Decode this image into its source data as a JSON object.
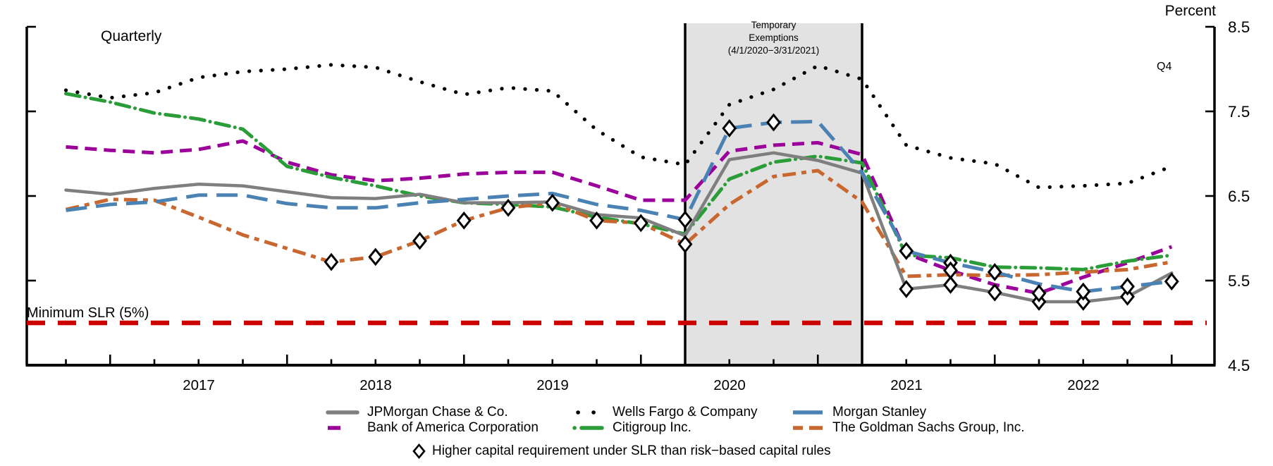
{
  "chart_data": {
    "type": "line",
    "title": "Quarterly",
    "unit_label": "Percent",
    "latest_label": "Q4",
    "ylim": [
      4.5,
      8.5
    ],
    "yticks": [
      8.5,
      7.5,
      6.5,
      5.5,
      4.5
    ],
    "ytick_labels": [
      "8.5",
      "7.5",
      "6.5",
      "5.5",
      "4.5"
    ],
    "year_labels": [
      "2017",
      "2018",
      "2019",
      "2020",
      "2021",
      "2022"
    ],
    "x_quarters": [
      "2016 Q3",
      "2016 Q4",
      "2017 Q1",
      "2017 Q2",
      "2017 Q3",
      "2017 Q4",
      "2018 Q1",
      "2018 Q2",
      "2018 Q3",
      "2018 Q4",
      "2019 Q1",
      "2019 Q2",
      "2019 Q3",
      "2019 Q4",
      "2020 Q1",
      "2020 Q2",
      "2020 Q3",
      "2020 Q4",
      "2021 Q1",
      "2021 Q2",
      "2021 Q3",
      "2021 Q4",
      "2022 Q1",
      "2022 Q2",
      "2022 Q3",
      "2022 Q4"
    ],
    "reference_line": {
      "label": "Minimum SLR (5%)",
      "value": 5.0,
      "color": "#cc0000"
    },
    "shaded_region": {
      "label_line1": "Temporary",
      "label_line2": "Exemptions",
      "label_line3": "(4/1/2020−3/31/2021)",
      "start_quarter": "2020 Q1",
      "end_quarter": "2021 Q1",
      "start_index": 14,
      "end_index": 18,
      "fill": "#e2e2e2"
    },
    "marker_note": "Higher capital requirement under SLR than risk−based capital rules",
    "series": [
      {
        "name": "JPMorgan Chase & Co.",
        "color": "#7f7f7f",
        "style": "solid",
        "values": [
          6.57,
          6.52,
          6.59,
          6.64,
          6.62,
          6.55,
          6.48,
          6.47,
          6.52,
          6.42,
          6.42,
          6.43,
          6.28,
          6.24,
          6.03,
          6.93,
          7.01,
          6.92,
          6.77,
          5.4,
          5.45,
          5.36,
          5.25,
          5.25,
          5.31,
          5.59
        ],
        "diamonds": [
          19,
          20,
          21,
          22,
          23,
          24
        ]
      },
      {
        "name": "Wells Fargo & Company",
        "color": "#000000",
        "style": "dotted",
        "values": [
          7.75,
          7.66,
          7.72,
          7.9,
          7.97,
          8.0,
          8.05,
          8.02,
          7.85,
          7.7,
          7.78,
          7.74,
          7.28,
          6.96,
          6.87,
          7.58,
          7.76,
          8.04,
          7.88,
          7.1,
          6.95,
          6.88,
          6.6,
          6.62,
          6.65,
          6.85
        ],
        "diamonds": []
      },
      {
        "name": "Morgan Stanley",
        "color": "#4b82b4",
        "style": "long-dash",
        "values": [
          6.33,
          6.4,
          6.43,
          6.51,
          6.51,
          6.41,
          6.36,
          6.36,
          6.42,
          6.46,
          6.5,
          6.53,
          6.4,
          6.33,
          6.22,
          7.3,
          7.37,
          7.38,
          6.78,
          5.85,
          5.71,
          5.6,
          5.46,
          5.37,
          5.43,
          5.49
        ],
        "diamonds": [
          14,
          15,
          16,
          19,
          20,
          21,
          23,
          24,
          25
        ]
      },
      {
        "name": "Bank of America Corporation",
        "color": "#9b009b",
        "style": "dash",
        "values": [
          7.08,
          7.04,
          7.01,
          7.05,
          7.15,
          6.9,
          6.75,
          6.68,
          6.71,
          6.76,
          6.78,
          6.78,
          6.62,
          6.45,
          6.45,
          7.03,
          7.1,
          7.13,
          6.99,
          5.82,
          5.62,
          5.45,
          5.35,
          5.54,
          5.71,
          5.9
        ],
        "diamonds": [
          20,
          22
        ]
      },
      {
        "name": "Citigroup Inc.",
        "color": "#2a9d38",
        "style": "dash-dot",
        "values": [
          7.71,
          7.61,
          7.48,
          7.41,
          7.29,
          6.85,
          6.72,
          6.62,
          6.5,
          6.42,
          6.4,
          6.37,
          6.25,
          6.17,
          6.05,
          6.7,
          6.9,
          6.97,
          6.89,
          5.8,
          5.77,
          5.66,
          5.65,
          5.63,
          5.73,
          5.8
        ],
        "diamonds": []
      },
      {
        "name": "The Goldman Sachs Group, Inc.",
        "color": "#c8672f",
        "style": "dash-dash-dot",
        "values": [
          6.34,
          6.46,
          6.45,
          6.25,
          6.04,
          5.88,
          5.72,
          5.78,
          5.97,
          6.21,
          6.36,
          6.42,
          6.21,
          6.18,
          5.93,
          6.4,
          6.73,
          6.8,
          6.43,
          5.55,
          5.57,
          5.56,
          5.57,
          5.6,
          5.63,
          5.72
        ],
        "diamonds": [
          6,
          7,
          8,
          9,
          10,
          11,
          12,
          13,
          14
        ]
      }
    ],
    "legend_rows": [
      [
        0,
        1,
        2
      ],
      [
        3,
        4,
        5
      ]
    ],
    "legend_positions": [
      [
        462,
        575
      ],
      [
        810,
        575
      ],
      [
        1122,
        575
      ],
      [
        462,
        597
      ],
      [
        810,
        597
      ],
      [
        1122,
        597
      ]
    ],
    "grid": false,
    "legend_position": "bottom"
  }
}
